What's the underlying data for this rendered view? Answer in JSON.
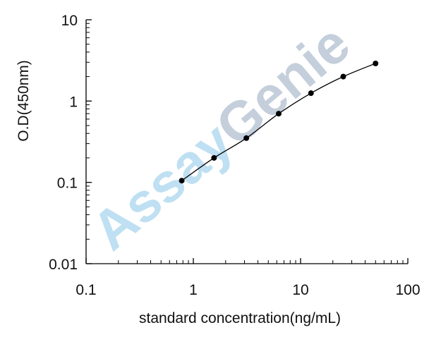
{
  "chart_data": {
    "type": "line",
    "title": "",
    "xlabel": "standard concentration(ng/mL)",
    "ylabel": "O.D(450nm)",
    "x_scale": "log",
    "y_scale": "log",
    "xlim": [
      0.1,
      100
    ],
    "ylim": [
      0.01,
      10
    ],
    "x_ticks": [
      "0.1",
      "1",
      "10",
      "100"
    ],
    "y_ticks": [
      "0.01",
      "0.1",
      "1",
      "10"
    ],
    "grid": false,
    "legend": "none",
    "series": [
      {
        "x": [
          0.78,
          1.56,
          3.12,
          6.25,
          12.5,
          25,
          50
        ],
        "y": [
          0.105,
          0.2,
          0.35,
          0.7,
          1.25,
          2.0,
          2.9
        ]
      }
    ],
    "watermark": {
      "part1": "Assay",
      "part2": "Genie",
      "color1": "#bfe0f2",
      "color2": "#c4cfdb"
    },
    "colors": {
      "line": "#000000",
      "marker": "#000000",
      "axis": "#000000"
    }
  }
}
